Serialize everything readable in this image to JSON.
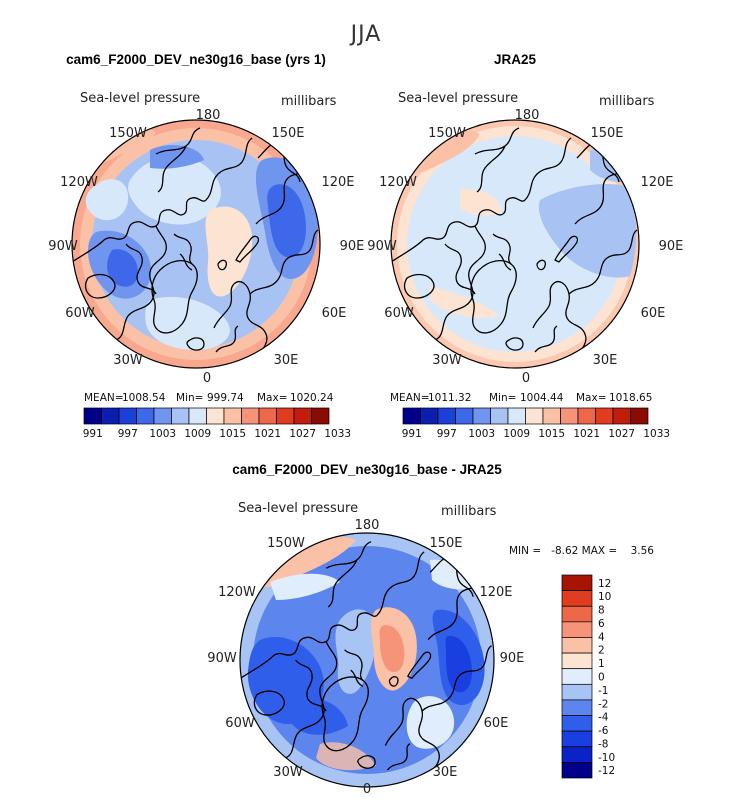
{
  "season": "JJA",
  "field_label": "Sea-level pressure",
  "units": "millibars",
  "lon_labels": [
    "180",
    "150E",
    "120E",
    "90E",
    "60E",
    "30E",
    "0",
    "30W",
    "60W",
    "90W",
    "120W",
    "150W"
  ],
  "panels": [
    {
      "id": "model",
      "title": "cam6_F2000_DEV_ne30g16_base (yrs 1)",
      "mean_label": "MEAN=",
      "mean": "1008.54",
      "min_label": "Min=",
      "min": "999.74",
      "max_label": "Max=",
      "max": "1020.24"
    },
    {
      "id": "obs",
      "title": "JRA25",
      "mean_label": "MEAN=",
      "mean": "1011.32",
      "min_label": "Min=",
      "min": "1004.44",
      "max_label": "Max=",
      "max": "1018.65"
    },
    {
      "id": "diff",
      "title": "cam6_F2000_DEV_ne30g16_base - JRA25",
      "minmax_text": "MIN =   -8.62 MAX =    3.56"
    }
  ],
  "colorbar_abs": {
    "colors": [
      "#00008b",
      "#0a1fb0",
      "#1a40d8",
      "#3d68ea",
      "#6f95ef",
      "#a8c3f3",
      "#d8e8fb",
      "#fde3d2",
      "#fbc1a6",
      "#f6947a",
      "#ee6749",
      "#e03c20",
      "#c01d0c",
      "#8a0a04"
    ],
    "tick_labels": [
      "991",
      "997",
      "1003",
      "1009",
      "1015",
      "1021",
      "1027",
      "1033"
    ]
  },
  "colorbar_diff": {
    "colors": [
      "#00008b",
      "#0a22c8",
      "#1a3fe0",
      "#2f5fea",
      "#5c86ee",
      "#a7c4f5",
      "#e0edfd",
      "#fde3d2",
      "#fbc1a6",
      "#f6947a",
      "#ee6749",
      "#e03c20",
      "#a81404"
    ],
    "tick_labels": [
      "-12",
      "-10",
      "-8",
      "-6",
      "-4",
      "-2",
      "-1",
      "0",
      "1",
      "2",
      "4",
      "6",
      "8",
      "10",
      "12"
    ]
  },
  "palette": {
    "land_outline": "#000000",
    "deep_blue": "#3d68ea",
    "mid_blue": "#6f95ef",
    "light_blue": "#a8c3f3",
    "pale_blue": "#d8e8fb",
    "pale_red": "#fde3d2",
    "light_red": "#fbc1a6",
    "mid_red": "#f6947a"
  }
}
